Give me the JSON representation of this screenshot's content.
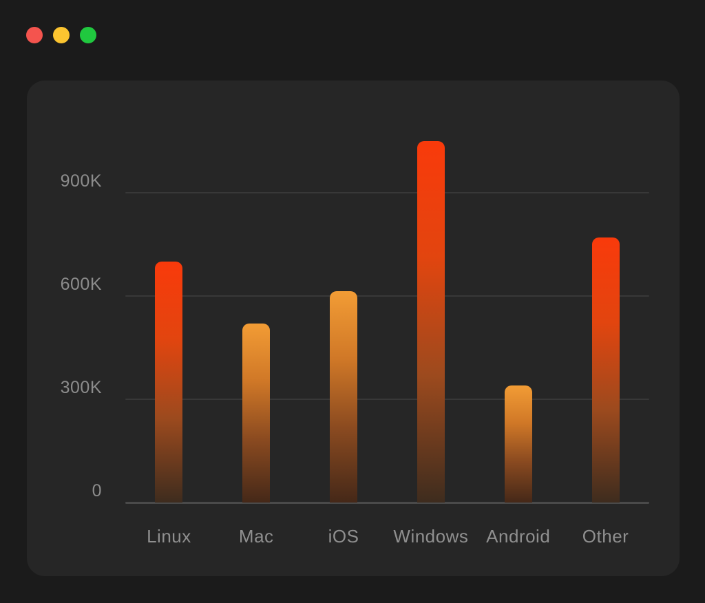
{
  "window": {
    "controls": [
      {
        "name": "close",
        "color": "#f4544e"
      },
      {
        "name": "minimize",
        "color": "#fbc430"
      },
      {
        "name": "zoom",
        "color": "#20c83f"
      }
    ],
    "panel_background": "#262626",
    "background": "#1b1b1b"
  },
  "chart_data": {
    "type": "bar",
    "title": "",
    "xlabel": "",
    "ylabel": "",
    "categories": [
      "Linux",
      "Mac",
      "iOS",
      "Windows",
      "Android",
      "Other"
    ],
    "values": [
      700000,
      520000,
      615000,
      1050000,
      340000,
      770000
    ],
    "bar_styles": [
      "red",
      "orange",
      "orange",
      "red",
      "orange",
      "red"
    ],
    "palette": {
      "red": [
        "#f93a0b",
        "#e2450f",
        "#9c4a1e",
        "#3e2c1e"
      ],
      "orange": [
        "#f29c35",
        "#d07827",
        "#8a4a20",
        "#452818"
      ]
    },
    "yticks": {
      "labels": [
        "900K",
        "600K",
        "300K",
        "0"
      ],
      "values": [
        900000,
        600000,
        300000,
        0
      ]
    },
    "ylim": [
      0,
      1050000
    ],
    "grid": true,
    "legend": false,
    "colors": {
      "gridline": "#383838",
      "axis_line": "#4a4a4a",
      "tick_text": "#8c8c8c",
      "category_text": "#8f8f8f"
    }
  }
}
